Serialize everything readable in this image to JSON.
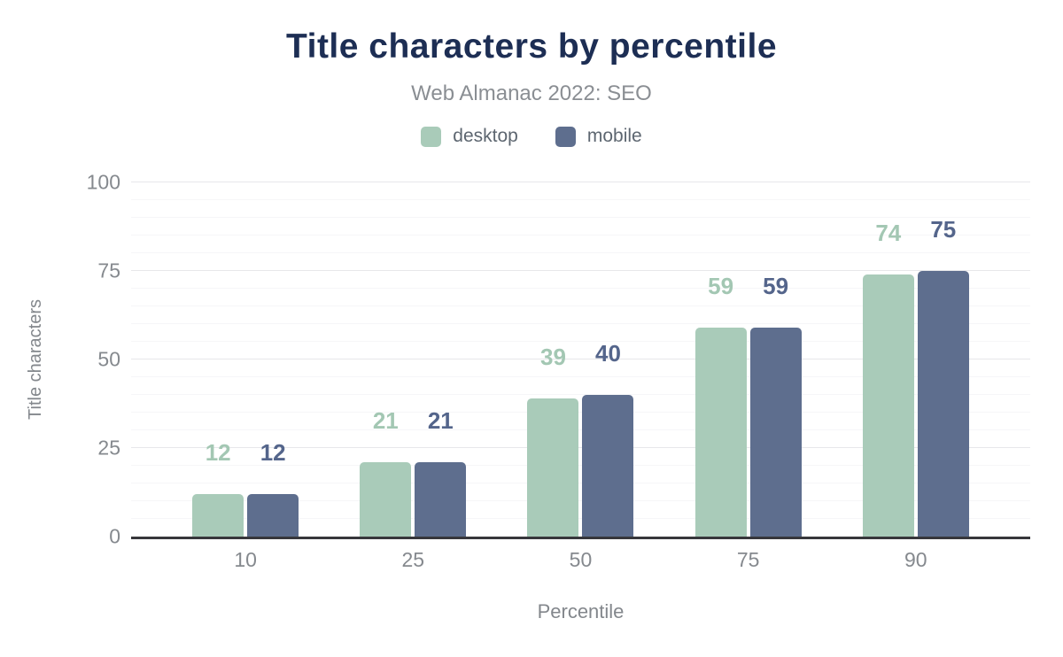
{
  "chart_data": {
    "type": "bar",
    "title": "Title characters by percentile",
    "subtitle": "Web Almanac 2022: SEO",
    "categories": [
      "10",
      "25",
      "50",
      "75",
      "90"
    ],
    "series": [
      {
        "name": "desktop",
        "color": "#a9cbb9",
        "label_color": "#a3c7b3",
        "values": [
          12,
          21,
          39,
          59,
          74
        ]
      },
      {
        "name": "mobile",
        "color": "#5e6e8e",
        "label_color": "#54658b",
        "values": [
          12,
          21,
          40,
          59,
          75
        ]
      }
    ],
    "xlabel": "Percentile",
    "ylabel": "Title characters",
    "ylim": [
      0,
      100
    ],
    "y_ticks": [
      0,
      25,
      50,
      75,
      100
    ],
    "minor_grid_step": 5,
    "major_grid_step": 25,
    "grid": true,
    "legend_position": "top",
    "bar_value_labels": true,
    "colors": {
      "title": "#1d2e54",
      "subtitle": "#8a8e93",
      "legend_text": "#5d6670",
      "tick_text": "#85898e",
      "axis_line": "#37373b",
      "grid_major": "#e7e7ea",
      "grid_minor": "#f6f6f8",
      "background": "#ffffff"
    }
  }
}
